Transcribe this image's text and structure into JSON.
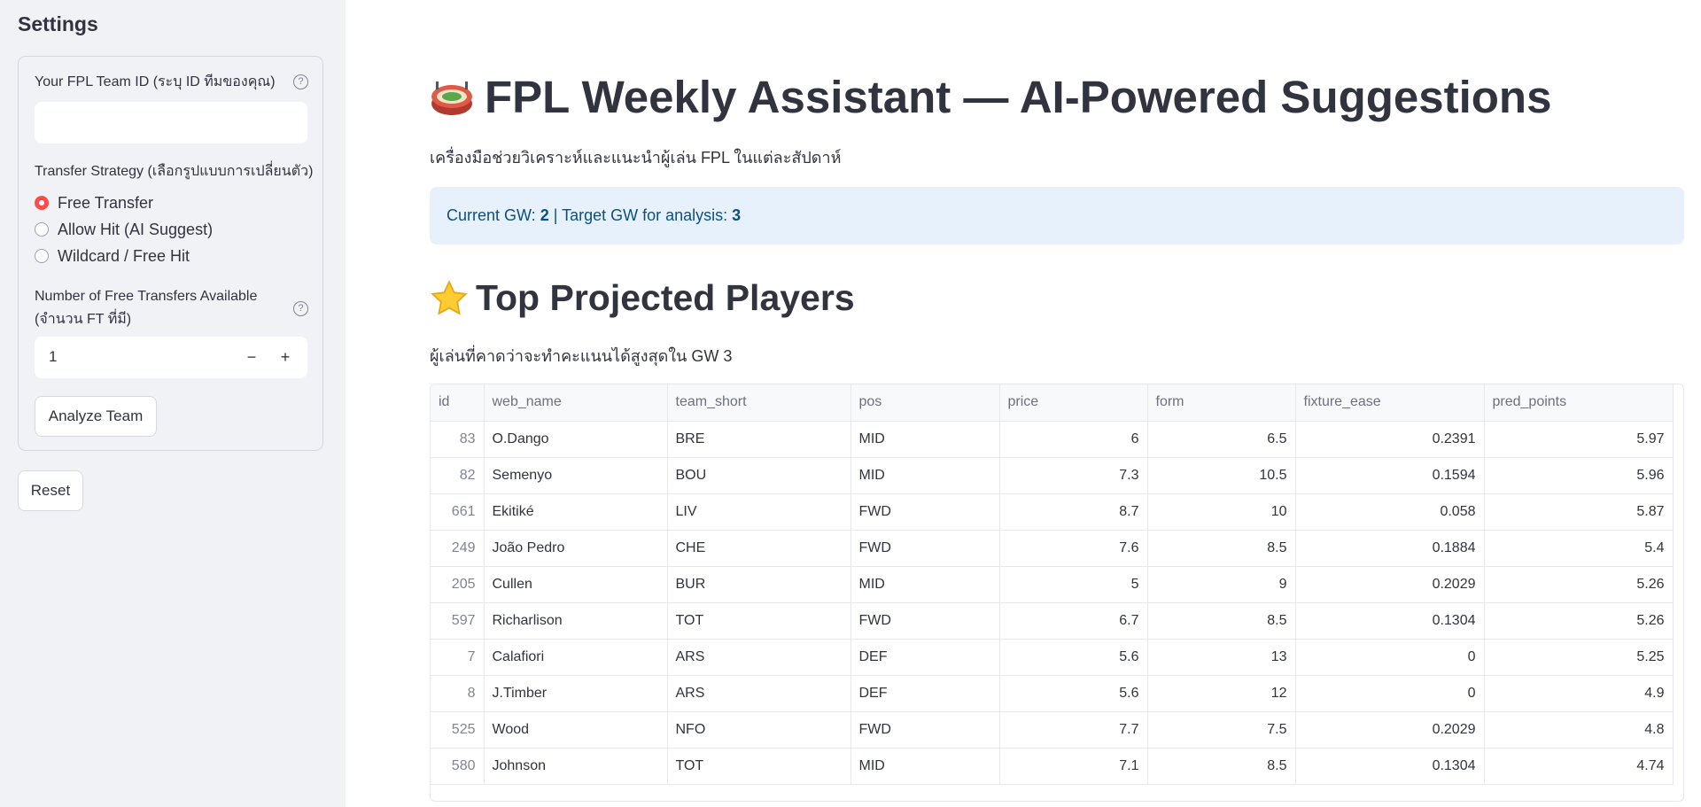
{
  "sidebar": {
    "title": "Settings",
    "team_id_label": "Your FPL Team ID (ระบุ ID ทีมของคุณ)",
    "team_id_value": "",
    "strategy_label": "Transfer Strategy (เลือกรูปแบบการเปลี่ยนตัว)",
    "strategy_options": [
      "Free Transfer",
      "Allow Hit (AI Suggest)",
      "Wildcard / Free Hit"
    ],
    "strategy_selected": "Free Transfer",
    "ft_label_line1": "Number of Free Transfers Available",
    "ft_label_line2": "(จำนวน FT ที่มี)",
    "ft_value": "1",
    "analyze_button": "Analyze Team",
    "reset_button": "Reset",
    "accent_color": "#ff4b4b"
  },
  "main": {
    "title": "FPL Weekly Assistant — AI-Powered Suggestions",
    "subtitle": "เครื่องมือช่วยวิเคราะห์และแนะนำผู้เล่น FPL ในแต่ละสัปดาห์",
    "info": {
      "current_gw_label": "Current GW: ",
      "current_gw": "2",
      "separator": " | Target GW for analysis: ",
      "target_gw": "3"
    },
    "section_title": "Top Projected Players",
    "section_caption": "ผู้เล่นที่คาดว่าจะทำคะแนนได้สูงสุดใน GW 3",
    "table": {
      "columns": [
        "id",
        "web_name",
        "team_short",
        "pos",
        "price",
        "form",
        "fixture_ease",
        "pred_points"
      ],
      "rows": [
        [
          "83",
          "O.Dango",
          "BRE",
          "MID",
          "6",
          "6.5",
          "0.2391",
          "5.97"
        ],
        [
          "82",
          "Semenyo",
          "BOU",
          "MID",
          "7.3",
          "10.5",
          "0.1594",
          "5.96"
        ],
        [
          "661",
          "Ekitiké",
          "LIV",
          "FWD",
          "8.7",
          "10",
          "0.058",
          "5.87"
        ],
        [
          "249",
          "João Pedro",
          "CHE",
          "FWD",
          "7.6",
          "8.5",
          "0.1884",
          "5.4"
        ],
        [
          "205",
          "Cullen",
          "BUR",
          "MID",
          "5",
          "9",
          "0.2029",
          "5.26"
        ],
        [
          "597",
          "Richarlison",
          "TOT",
          "FWD",
          "6.7",
          "8.5",
          "0.1304",
          "5.26"
        ],
        [
          "7",
          "Calafiori",
          "ARS",
          "DEF",
          "5.6",
          "13",
          "0",
          "5.25"
        ],
        [
          "8",
          "J.Timber",
          "ARS",
          "DEF",
          "5.6",
          "12",
          "0",
          "4.9"
        ],
        [
          "525",
          "Wood",
          "NFO",
          "FWD",
          "7.7",
          "7.5",
          "0.2029",
          "4.8"
        ],
        [
          "580",
          "Johnson",
          "TOT",
          "MID",
          "7.1",
          "8.5",
          "0.1304",
          "4.74"
        ]
      ]
    }
  },
  "icons": {
    "title_icon": "stadium-icon",
    "section_icon": "star-icon",
    "help_icon": "question-circle-icon"
  }
}
